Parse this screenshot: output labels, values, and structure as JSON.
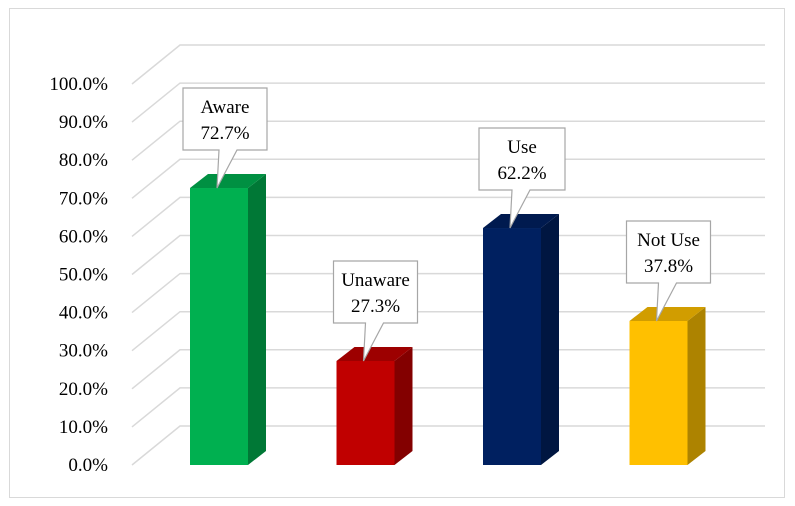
{
  "chart_data": {
    "type": "bar",
    "style": "3d-column",
    "categories": [
      "Aware",
      "Unaware",
      "Use",
      "Not Use"
    ],
    "values": [
      72.7,
      27.3,
      62.2,
      37.8
    ],
    "value_labels": [
      "72.7%",
      "27.3%",
      "62.2%",
      "37.8%"
    ],
    "ylim": [
      0,
      100
    ],
    "yticks": [
      "0.0%",
      "10.0%",
      "20.0%",
      "30.0%",
      "40.0%",
      "50.0%",
      "60.0%",
      "70.0%",
      "80.0%",
      "90.0%",
      "100.0%"
    ],
    "grid": true,
    "legend": "none",
    "colors": [
      "#00B050",
      "#C00000",
      "#002060",
      "#FFC000"
    ]
  }
}
